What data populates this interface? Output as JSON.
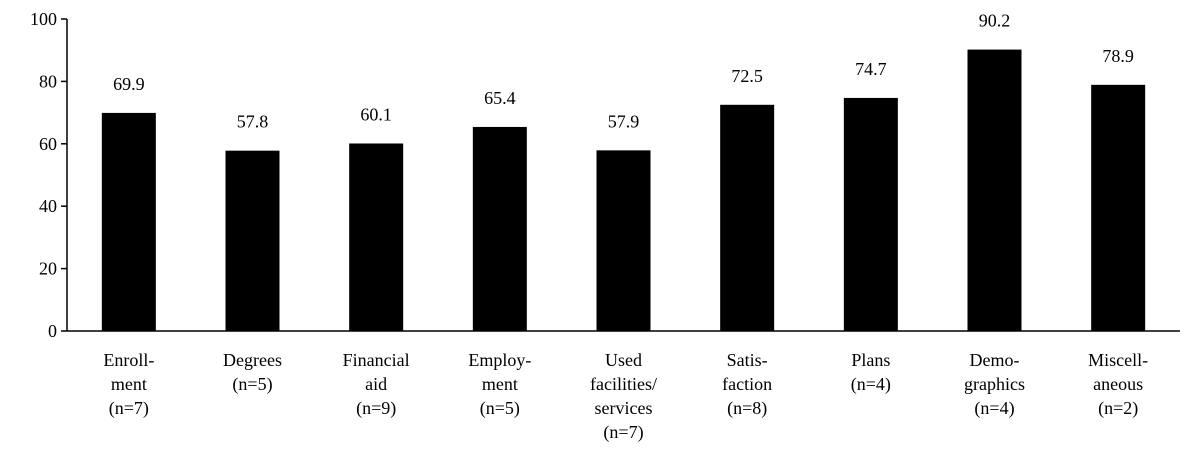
{
  "chart_data": {
    "type": "bar",
    "title": "",
    "xlabel": "",
    "ylabel": "",
    "ylim": [
      0,
      100
    ],
    "yticks": [
      0,
      20,
      40,
      60,
      80,
      100
    ],
    "grid": false,
    "legend": "none",
    "bar_color": "#000000",
    "categories": [
      [
        "Enroll-",
        "ment",
        "(n=7)"
      ],
      [
        "Degrees",
        "(n=5)"
      ],
      [
        "Financial",
        "aid",
        "(n=9)"
      ],
      [
        "Employ-",
        "ment",
        "(n=5)"
      ],
      [
        "Used",
        "facilities/",
        "services",
        "(n=7)"
      ],
      [
        "Satis-",
        "faction",
        "(n=8)"
      ],
      [
        "Plans",
        "(n=4)"
      ],
      [
        "Demo-",
        "graphics",
        "(n=4)"
      ],
      [
        "Miscell-",
        "aneous",
        "(n=2)"
      ]
    ],
    "values": [
      69.9,
      57.8,
      60.1,
      65.4,
      57.9,
      72.5,
      74.7,
      90.2,
      78.9
    ],
    "value_labels": [
      "69.9",
      "57.8",
      "60.1",
      "65.4",
      "57.9",
      "72.5",
      "74.7",
      "90.2",
      "78.9"
    ]
  }
}
